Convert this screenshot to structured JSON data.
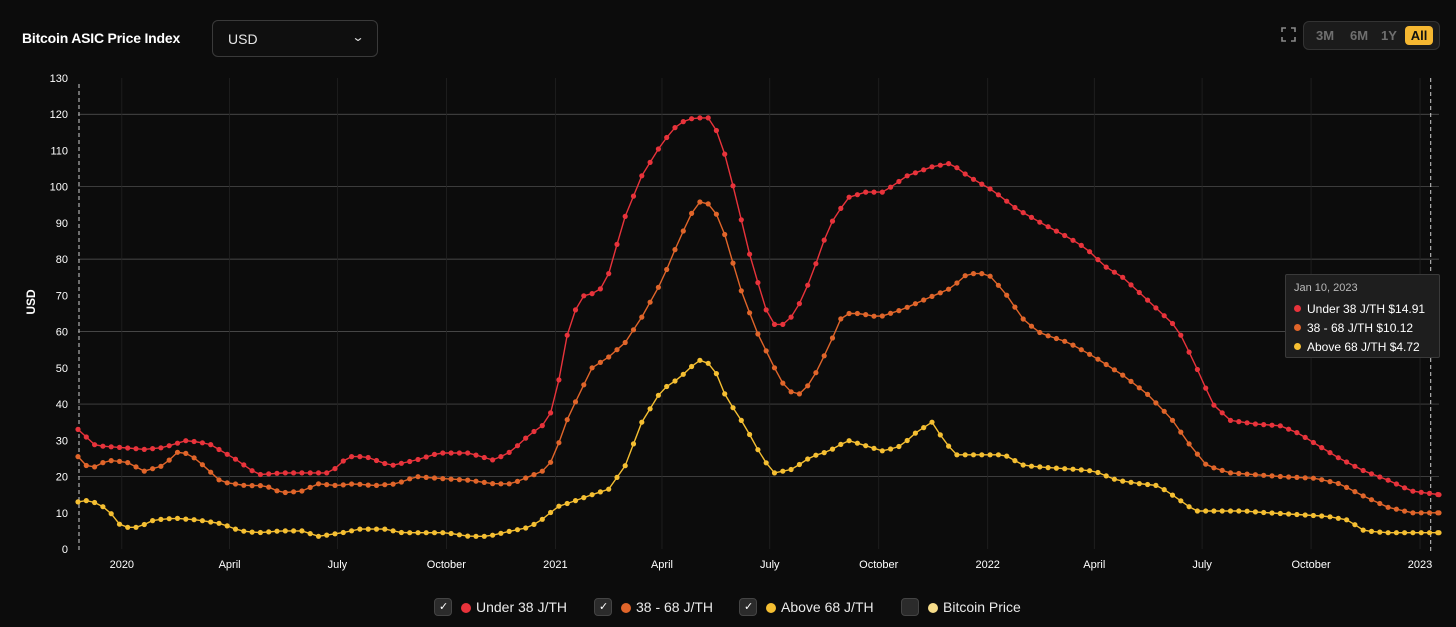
{
  "header": {
    "title": "Bitcoin ASIC Price Index",
    "currency_selected": "USD",
    "ranges": [
      "3M",
      "6M",
      "1Y",
      "All"
    ],
    "active_range": "All"
  },
  "colors": {
    "background": "#0c0c0c",
    "under_38": "#e8333b",
    "mid_38_68": "#e0652a",
    "above_68": "#f5bf32",
    "bitcoin_price": "#f7dd8a",
    "accent": "#f5b731"
  },
  "tooltip": {
    "date": "Jan 10, 2023",
    "rows": [
      {
        "label": "Under 38 J/TH $14.91",
        "color": "#e8333b"
      },
      {
        "label": "38 - 68 J/TH $10.12",
        "color": "#e0652a"
      },
      {
        "label": "Above 68 J/TH $4.72",
        "color": "#f5bf32"
      }
    ]
  },
  "legend": [
    {
      "label": "Under 38 J/TH",
      "checked": true,
      "color": "#e8333b"
    },
    {
      "label": "38 - 68 J/TH",
      "checked": true,
      "color": "#e0652a"
    },
    {
      "label": "Above 68 J/TH",
      "checked": true,
      "color": "#f5bf32"
    },
    {
      "label": "Bitcoin Price",
      "checked": false,
      "color": "#f7dd8a"
    }
  ],
  "chart_data": {
    "type": "line",
    "ylabel": "USD",
    "ylim": [
      0,
      130
    ],
    "yticks": [
      0,
      10,
      20,
      30,
      40,
      50,
      60,
      70,
      80,
      90,
      100,
      110,
      120,
      130
    ],
    "xlim": [
      "2019-11-25",
      "2023-01-17"
    ],
    "xticks": [
      {
        "date": "2020-01-01",
        "label": "2020"
      },
      {
        "date": "2020-04-01",
        "label": "April"
      },
      {
        "date": "2020-07-01",
        "label": "July"
      },
      {
        "date": "2020-10-01",
        "label": "October"
      },
      {
        "date": "2021-01-01",
        "label": "2021"
      },
      {
        "date": "2021-04-01",
        "label": "April"
      },
      {
        "date": "2021-07-01",
        "label": "July"
      },
      {
        "date": "2021-10-01",
        "label": "October"
      },
      {
        "date": "2022-01-01",
        "label": "2022"
      },
      {
        "date": "2022-04-01",
        "label": "April"
      },
      {
        "date": "2022-07-01",
        "label": "July"
      },
      {
        "date": "2022-10-01",
        "label": "October"
      },
      {
        "date": "2023-01-01",
        "label": "2023"
      }
    ],
    "grid": "horizontal",
    "highlight_date": "2023-01-10",
    "series": [
      {
        "name": "Under 38 J/TH",
        "color": "#e8333b",
        "points": [
          [
            "2019-11-25",
            33
          ],
          [
            "2019-12-10",
            28.5
          ],
          [
            "2020-01-01",
            28
          ],
          [
            "2020-01-20",
            27.5
          ],
          [
            "2020-02-05",
            28
          ],
          [
            "2020-02-25",
            30
          ],
          [
            "2020-03-15",
            29
          ],
          [
            "2020-04-05",
            25
          ],
          [
            "2020-04-25",
            20.5
          ],
          [
            "2020-05-15",
            21
          ],
          [
            "2020-06-05",
            21
          ],
          [
            "2020-06-25",
            21
          ],
          [
            "2020-07-10",
            25.5
          ],
          [
            "2020-07-25",
            25.5
          ],
          [
            "2020-08-15",
            23
          ],
          [
            "2020-09-05",
            24.5
          ],
          [
            "2020-09-25",
            26.5
          ],
          [
            "2020-10-20",
            26.5
          ],
          [
            "2020-11-10",
            24.5
          ],
          [
            "2020-11-25",
            27
          ],
          [
            "2020-12-10",
            31.5
          ],
          [
            "2020-12-25",
            35
          ],
          [
            "2021-01-01",
            41
          ],
          [
            "2021-01-10",
            58
          ],
          [
            "2021-01-20",
            68
          ],
          [
            "2021-01-28",
            71
          ],
          [
            "2021-02-05",
            70
          ],
          [
            "2021-02-15",
            76
          ],
          [
            "2021-02-28",
            91
          ],
          [
            "2021-03-15",
            103
          ],
          [
            "2021-04-01",
            112
          ],
          [
            "2021-04-15",
            117.5
          ],
          [
            "2021-04-28",
            119
          ],
          [
            "2021-05-10",
            119
          ],
          [
            "2021-05-20",
            114
          ],
          [
            "2021-06-01",
            99
          ],
          [
            "2021-06-15",
            80
          ],
          [
            "2021-06-28",
            66
          ],
          [
            "2021-07-05",
            62
          ],
          [
            "2021-07-15",
            62
          ],
          [
            "2021-07-25",
            67
          ],
          [
            "2021-08-05",
            75
          ],
          [
            "2021-08-20",
            89
          ],
          [
            "2021-09-05",
            97
          ],
          [
            "2021-09-20",
            98.5
          ],
          [
            "2021-10-05",
            98.5
          ],
          [
            "2021-10-25",
            103
          ],
          [
            "2021-11-15",
            105.5
          ],
          [
            "2021-12-01",
            106.5
          ],
          [
            "2021-12-15",
            103
          ],
          [
            "2022-01-05",
            99
          ],
          [
            "2022-01-25",
            94
          ],
          [
            "2022-02-15",
            90
          ],
          [
            "2022-03-10",
            86
          ],
          [
            "2022-03-25",
            83
          ],
          [
            "2022-04-10",
            78
          ],
          [
            "2022-04-25",
            75
          ],
          [
            "2022-05-15",
            69
          ],
          [
            "2022-06-10",
            61
          ],
          [
            "2022-06-25",
            51
          ],
          [
            "2022-07-10",
            40
          ],
          [
            "2022-07-25",
            35.5
          ],
          [
            "2022-08-15",
            34.5
          ],
          [
            "2022-09-05",
            34
          ],
          [
            "2022-09-20",
            32
          ],
          [
            "2022-10-05",
            29
          ],
          [
            "2022-10-25",
            25
          ],
          [
            "2022-11-15",
            21.5
          ],
          [
            "2022-12-05",
            19
          ],
          [
            "2022-12-25",
            16
          ],
          [
            "2023-01-17",
            15
          ]
        ]
      },
      {
        "name": "38 - 68 J/TH",
        "color": "#e0652a",
        "points": [
          [
            "2019-11-25",
            25.5
          ],
          [
            "2019-12-05",
            22
          ],
          [
            "2019-12-20",
            24.5
          ],
          [
            "2020-01-05",
            24
          ],
          [
            "2020-01-20",
            21.5
          ],
          [
            "2020-02-05",
            23
          ],
          [
            "2020-02-18",
            27
          ],
          [
            "2020-02-28",
            26
          ],
          [
            "2020-03-10",
            23
          ],
          [
            "2020-03-25",
            18.5
          ],
          [
            "2020-04-15",
            17.5
          ],
          [
            "2020-05-01",
            17.5
          ],
          [
            "2020-05-15",
            15.5
          ],
          [
            "2020-06-01",
            16
          ],
          [
            "2020-06-15",
            18
          ],
          [
            "2020-07-01",
            17.5
          ],
          [
            "2020-07-15",
            18
          ],
          [
            "2020-08-01",
            17.5
          ],
          [
            "2020-08-20",
            18
          ],
          [
            "2020-09-05",
            20
          ],
          [
            "2020-09-25",
            19.5
          ],
          [
            "2020-10-20",
            19
          ],
          [
            "2020-11-10",
            18
          ],
          [
            "2020-11-25",
            18
          ],
          [
            "2020-12-10",
            20
          ],
          [
            "2020-12-25",
            22
          ],
          [
            "2021-01-01",
            26.5
          ],
          [
            "2021-01-10",
            35
          ],
          [
            "2021-01-20",
            42
          ],
          [
            "2021-02-01",
            50
          ],
          [
            "2021-02-15",
            53
          ],
          [
            "2021-03-01",
            57
          ],
          [
            "2021-03-15",
            64
          ],
          [
            "2021-04-01",
            74
          ],
          [
            "2021-04-15",
            85
          ],
          [
            "2021-04-28",
            94
          ],
          [
            "2021-05-05",
            96.5
          ],
          [
            "2021-05-15",
            94
          ],
          [
            "2021-05-25",
            86
          ],
          [
            "2021-06-05",
            73
          ],
          [
            "2021-06-20",
            60
          ],
          [
            "2021-07-05",
            50
          ],
          [
            "2021-07-15",
            44
          ],
          [
            "2021-07-25",
            42.5
          ],
          [
            "2021-08-05",
            46
          ],
          [
            "2021-08-20",
            56
          ],
          [
            "2021-09-01",
            65
          ],
          [
            "2021-09-15",
            65
          ],
          [
            "2021-10-01",
            64
          ],
          [
            "2021-10-20",
            66
          ],
          [
            "2021-11-10",
            69
          ],
          [
            "2021-12-01",
            72
          ],
          [
            "2021-12-15",
            76
          ],
          [
            "2022-01-01",
            76
          ],
          [
            "2022-01-15",
            71
          ],
          [
            "2022-02-01",
            63
          ],
          [
            "2022-02-15",
            59.5
          ],
          [
            "2022-03-10",
            57
          ],
          [
            "2022-04-01",
            53
          ],
          [
            "2022-04-25",
            48
          ],
          [
            "2022-05-15",
            43
          ],
          [
            "2022-06-05",
            36
          ],
          [
            "2022-06-20",
            29
          ],
          [
            "2022-07-05",
            23
          ],
          [
            "2022-07-25",
            21
          ],
          [
            "2022-08-15",
            20.5
          ],
          [
            "2022-09-05",
            20
          ],
          [
            "2022-10-05",
            19.5
          ],
          [
            "2022-10-25",
            18
          ],
          [
            "2022-11-15",
            14.5
          ],
          [
            "2022-12-05",
            11.5
          ],
          [
            "2022-12-25",
            10
          ],
          [
            "2023-01-17",
            10
          ]
        ]
      },
      {
        "name": "Above 68 J/TH",
        "color": "#f5bf32",
        "points": [
          [
            "2019-11-25",
            13
          ],
          [
            "2019-12-05",
            13.5
          ],
          [
            "2019-12-20",
            11
          ],
          [
            "2020-01-01",
            6
          ],
          [
            "2020-01-15",
            6
          ],
          [
            "2020-01-28",
            8
          ],
          [
            "2020-02-15",
            8.5
          ],
          [
            "2020-03-05",
            8
          ],
          [
            "2020-03-25",
            7
          ],
          [
            "2020-04-10",
            5
          ],
          [
            "2020-04-25",
            4.5
          ],
          [
            "2020-05-15",
            5
          ],
          [
            "2020-06-01",
            5
          ],
          [
            "2020-06-15",
            3.5
          ],
          [
            "2020-07-05",
            4.5
          ],
          [
            "2020-07-20",
            5.5
          ],
          [
            "2020-08-10",
            5.5
          ],
          [
            "2020-08-25",
            4.5
          ],
          [
            "2020-09-15",
            4.5
          ],
          [
            "2020-10-01",
            4.5
          ],
          [
            "2020-10-20",
            3.5
          ],
          [
            "2020-11-05",
            3.5
          ],
          [
            "2020-11-25",
            5
          ],
          [
            "2020-12-10",
            6
          ],
          [
            "2020-12-25",
            9
          ],
          [
            "2021-01-01",
            11.5
          ],
          [
            "2021-01-15",
            13
          ],
          [
            "2021-02-01",
            15
          ],
          [
            "2021-02-15",
            16.5
          ],
          [
            "2021-03-01",
            23
          ],
          [
            "2021-03-15",
            35
          ],
          [
            "2021-04-01",
            44
          ],
          [
            "2021-04-15",
            47
          ],
          [
            "2021-04-28",
            51
          ],
          [
            "2021-05-05",
            52.5
          ],
          [
            "2021-05-15",
            50
          ],
          [
            "2021-05-25",
            42
          ],
          [
            "2021-06-10",
            34
          ],
          [
            "2021-06-25",
            25
          ],
          [
            "2021-07-05",
            21
          ],
          [
            "2021-07-20",
            22
          ],
          [
            "2021-08-05",
            25.5
          ],
          [
            "2021-08-20",
            27
          ],
          [
            "2021-09-05",
            30
          ],
          [
            "2021-09-20",
            28.5
          ],
          [
            "2021-10-05",
            27
          ],
          [
            "2021-10-20",
            28.5
          ],
          [
            "2021-11-01",
            32
          ],
          [
            "2021-11-15",
            35
          ],
          [
            "2021-11-25",
            30
          ],
          [
            "2021-12-05",
            26
          ],
          [
            "2021-12-25",
            26
          ],
          [
            "2022-01-15",
            26
          ],
          [
            "2022-02-01",
            23
          ],
          [
            "2022-02-20",
            22.5
          ],
          [
            "2022-03-15",
            22
          ],
          [
            "2022-04-01",
            21.5
          ],
          [
            "2022-04-20",
            19
          ],
          [
            "2022-05-10",
            18
          ],
          [
            "2022-05-25",
            17.5
          ],
          [
            "2022-06-10",
            14
          ],
          [
            "2022-06-25",
            10.5
          ],
          [
            "2022-07-15",
            10.5
          ],
          [
            "2022-08-05",
            10.5
          ],
          [
            "2022-08-25",
            10
          ],
          [
            "2022-09-20",
            9.5
          ],
          [
            "2022-10-15",
            9
          ],
          [
            "2022-11-01",
            8
          ],
          [
            "2022-11-15",
            5
          ],
          [
            "2022-12-05",
            4.5
          ],
          [
            "2023-01-17",
            4.5
          ]
        ]
      }
    ]
  }
}
